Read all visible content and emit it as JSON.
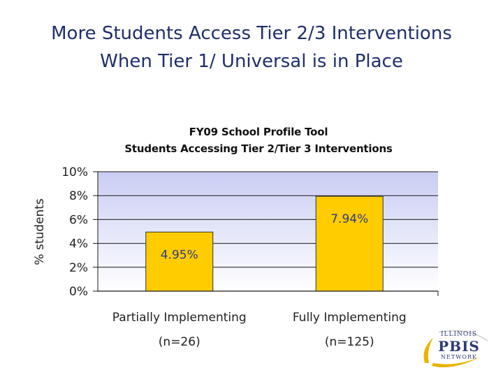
{
  "slide": {
    "title_line1": "More Students Access Tier 2/3 Interventions",
    "title_line2": "When Tier 1/ Universal is in Place"
  },
  "chart_data": {
    "type": "bar",
    "title_line1": "FY09 School Profile Tool",
    "title_line2": "Students Accessing Tier 2/Tier 3 Interventions",
    "ylabel": "% students",
    "ylim": [
      0,
      10
    ],
    "yticks": [
      "0%",
      "2%",
      "4%",
      "6%",
      "8%",
      "10%"
    ],
    "categories": [
      {
        "label": "Partially Implementing",
        "sublabel": "(n=26)"
      },
      {
        "label": "Fully Implementing",
        "sublabel": "(n=125)"
      }
    ],
    "values": [
      4.95,
      7.94
    ],
    "data_labels": [
      "4.95%",
      "7.94%"
    ],
    "grid": true,
    "colors": {
      "bar": "#ffcc00",
      "plot_top": "#c9cdf3",
      "plot_bottom": "#ffffff",
      "data_label": "#2f3a86"
    }
  },
  "logo": {
    "line1": "ILLINOIS",
    "line2": "PBIS",
    "line3": "NETWORK"
  }
}
